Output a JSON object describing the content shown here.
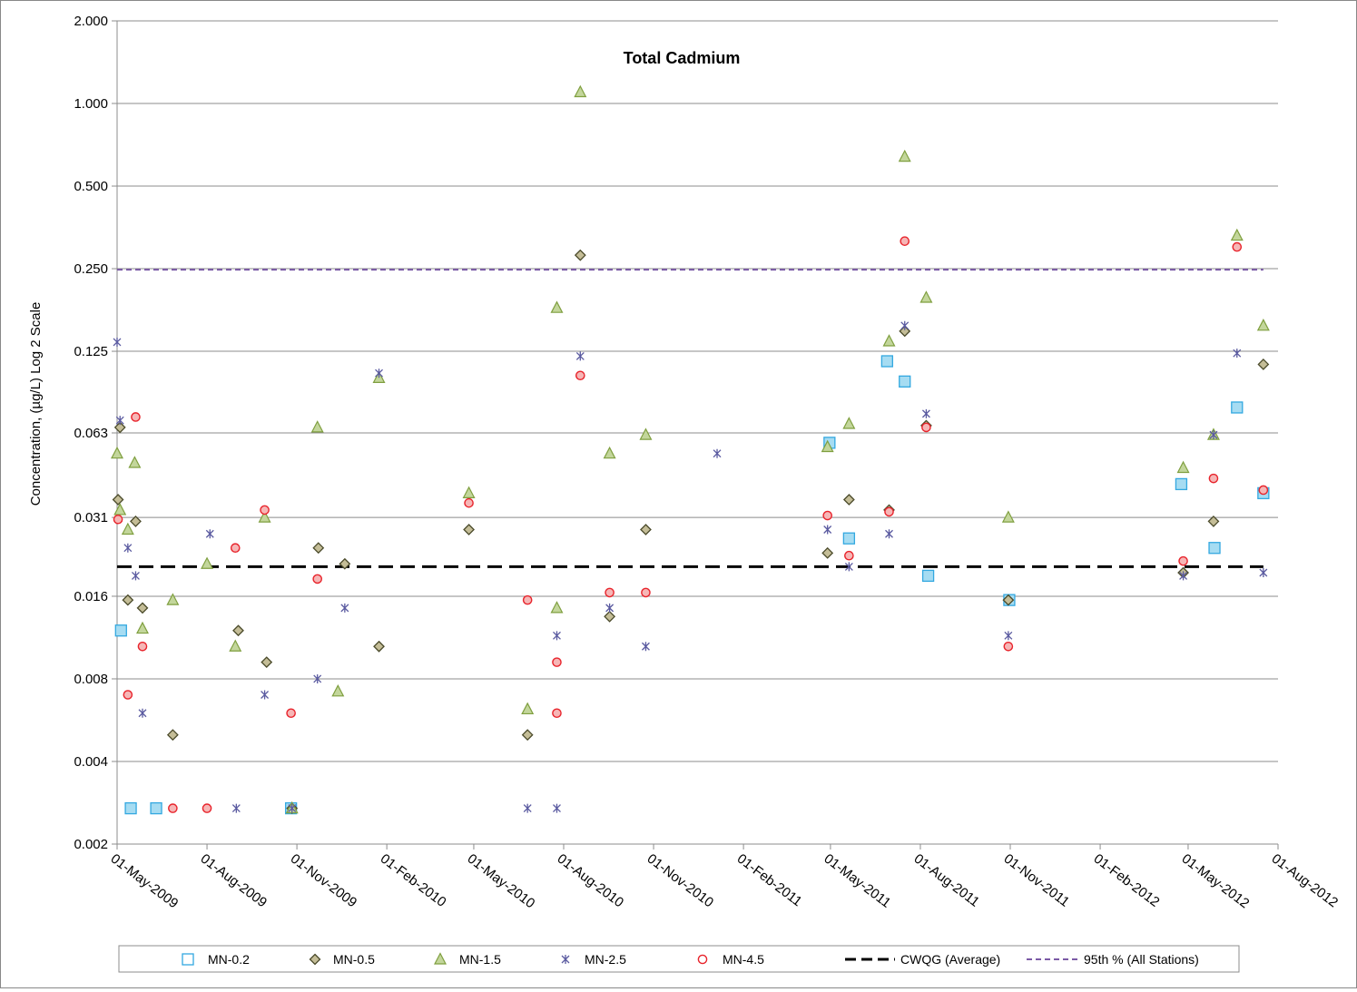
{
  "chart_data": {
    "type": "scatter",
    "title": "Total Cadmium",
    "ylabel": "Concentration, (µg/L) Log 2 Scale",
    "xlabel": "",
    "yscale": "log2",
    "ylim": [
      0.002,
      2.0
    ],
    "yticks": [
      {
        "value": 0.002,
        "label": "0.002"
      },
      {
        "value": 0.004,
        "label": "0.004"
      },
      {
        "value": 0.008,
        "label": "0.008"
      },
      {
        "value": 0.016,
        "label": "0.016"
      },
      {
        "value": 0.031,
        "label": "0.031"
      },
      {
        "value": 0.063,
        "label": "0.063"
      },
      {
        "value": 0.125,
        "label": "0.125"
      },
      {
        "value": 0.25,
        "label": "0.250"
      },
      {
        "value": 0.5,
        "label": "0.500"
      },
      {
        "value": 1.0,
        "label": "1.000"
      },
      {
        "value": 2.0,
        "label": "2.000"
      }
    ],
    "xlim": [
      "2009-05-01",
      "2012-08-01"
    ],
    "xticks": [
      {
        "date": "2009-05-01",
        "label": "01-May-2009"
      },
      {
        "date": "2009-08-01",
        "label": "01-Aug-2009"
      },
      {
        "date": "2009-11-01",
        "label": "01-Nov-2009"
      },
      {
        "date": "2010-02-01",
        "label": "01-Feb-2010"
      },
      {
        "date": "2010-05-01",
        "label": "01-May-2010"
      },
      {
        "date": "2010-08-01",
        "label": "01-Aug-2010"
      },
      {
        "date": "2010-11-01",
        "label": "01-Nov-2010"
      },
      {
        "date": "2011-02-01",
        "label": "01-Feb-2011"
      },
      {
        "date": "2011-05-01",
        "label": "01-May-2011"
      },
      {
        "date": "2011-08-01",
        "label": "01-Aug-2011"
      },
      {
        "date": "2011-11-01",
        "label": "01-Nov-2011"
      },
      {
        "date": "2012-02-01",
        "label": "01-Feb-2012"
      },
      {
        "date": "2012-05-01",
        "label": "01-May-2012"
      },
      {
        "date": "2012-08-01",
        "label": "01-Aug-2012"
      }
    ],
    "grid": "horizontal",
    "legend_position": "bottom",
    "series": [
      {
        "name": "MN-0.2",
        "marker": "square",
        "color": "#33a8e0",
        "fill": "#a6dcf2",
        "points": [
          {
            "x": "2009-05-05",
            "y": 0.012
          },
          {
            "x": "2009-05-15",
            "y": 0.0027
          },
          {
            "x": "2009-06-10",
            "y": 0.0027
          },
          {
            "x": "2009-10-26",
            "y": 0.0027
          },
          {
            "x": "2011-04-30",
            "y": 0.058
          },
          {
            "x": "2011-05-20",
            "y": 0.026
          },
          {
            "x": "2011-06-28",
            "y": 0.115
          },
          {
            "x": "2011-07-16",
            "y": 0.097
          },
          {
            "x": "2011-08-09",
            "y": 0.019
          },
          {
            "x": "2011-10-31",
            "y": 0.0155
          },
          {
            "x": "2012-04-24",
            "y": 0.041
          },
          {
            "x": "2012-05-28",
            "y": 0.024
          },
          {
            "x": "2012-06-20",
            "y": 0.078
          },
          {
            "x": "2012-07-17",
            "y": 0.038
          }
        ]
      },
      {
        "name": "MN-0.5",
        "marker": "diamond",
        "color": "#4a4a2a",
        "fill": "#c4bd97",
        "points": [
          {
            "x": "2009-05-02",
            "y": 0.036
          },
          {
            "x": "2009-05-04",
            "y": 0.066
          },
          {
            "x": "2009-05-12",
            "y": 0.0155
          },
          {
            "x": "2009-05-20",
            "y": 0.03
          },
          {
            "x": "2009-05-27",
            "y": 0.0145
          },
          {
            "x": "2009-06-27",
            "y": 0.005
          },
          {
            "x": "2009-09-02",
            "y": 0.012
          },
          {
            "x": "2009-10-01",
            "y": 0.0092
          },
          {
            "x": "2009-10-27",
            "y": 0.0027
          },
          {
            "x": "2009-11-23",
            "y": 0.024
          },
          {
            "x": "2009-12-20",
            "y": 0.021
          },
          {
            "x": "2010-01-24",
            "y": 0.0105
          },
          {
            "x": "2010-04-26",
            "y": 0.028
          },
          {
            "x": "2010-06-25",
            "y": 0.005
          },
          {
            "x": "2010-08-18",
            "y": 0.28
          },
          {
            "x": "2010-09-17",
            "y": 0.0135
          },
          {
            "x": "2010-10-24",
            "y": 0.028
          },
          {
            "x": "2011-04-28",
            "y": 0.023
          },
          {
            "x": "2011-05-20",
            "y": 0.036
          },
          {
            "x": "2011-06-30",
            "y": 0.033
          },
          {
            "x": "2011-07-16",
            "y": 0.148
          },
          {
            "x": "2011-08-07",
            "y": 0.067
          },
          {
            "x": "2011-10-30",
            "y": 0.0155
          },
          {
            "x": "2012-04-26",
            "y": 0.0195
          },
          {
            "x": "2012-05-27",
            "y": 0.03
          },
          {
            "x": "2012-07-17",
            "y": 0.112
          }
        ]
      },
      {
        "name": "MN-1.5",
        "marker": "triangle",
        "color": "#7f9f3f",
        "fill": "#c3d69b",
        "points": [
          {
            "x": "2009-05-01",
            "y": 0.053
          },
          {
            "x": "2009-05-04",
            "y": 0.033
          },
          {
            "x": "2009-05-12",
            "y": 0.028
          },
          {
            "x": "2009-05-19",
            "y": 0.049
          },
          {
            "x": "2009-05-27",
            "y": 0.0122
          },
          {
            "x": "2009-06-27",
            "y": 0.0155
          },
          {
            "x": "2009-08-01",
            "y": 0.021
          },
          {
            "x": "2009-08-30",
            "y": 0.0105
          },
          {
            "x": "2009-09-29",
            "y": 0.031
          },
          {
            "x": "2009-10-27",
            "y": 0.0027
          },
          {
            "x": "2009-11-22",
            "y": 0.066
          },
          {
            "x": "2009-12-13",
            "y": 0.0072
          },
          {
            "x": "2010-01-24",
            "y": 0.1
          },
          {
            "x": "2010-04-26",
            "y": 0.038
          },
          {
            "x": "2010-06-25",
            "y": 0.0062
          },
          {
            "x": "2010-07-25",
            "y": 0.0145
          },
          {
            "x": "2010-07-25",
            "y": 0.18
          },
          {
            "x": "2010-08-18",
            "y": 1.1
          },
          {
            "x": "2010-09-17",
            "y": 0.053
          },
          {
            "x": "2010-10-24",
            "y": 0.062
          },
          {
            "x": "2011-04-28",
            "y": 0.056
          },
          {
            "x": "2011-05-20",
            "y": 0.068
          },
          {
            "x": "2011-06-30",
            "y": 0.136
          },
          {
            "x": "2011-07-16",
            "y": 0.64
          },
          {
            "x": "2011-08-07",
            "y": 0.196
          },
          {
            "x": "2011-10-30",
            "y": 0.031
          },
          {
            "x": "2012-04-26",
            "y": 0.047
          },
          {
            "x": "2012-05-27",
            "y": 0.062
          },
          {
            "x": "2012-06-20",
            "y": 0.33
          },
          {
            "x": "2012-07-17",
            "y": 0.155
          }
        ]
      },
      {
        "name": "MN-2.5",
        "marker": "star",
        "color": "#5a5aa0",
        "fill": "#5a5aa0",
        "points": [
          {
            "x": "2009-05-01",
            "y": 0.135
          },
          {
            "x": "2009-05-04",
            "y": 0.07
          },
          {
            "x": "2009-05-12",
            "y": 0.024
          },
          {
            "x": "2009-05-20",
            "y": 0.019
          },
          {
            "x": "2009-05-27",
            "y": 0.006
          },
          {
            "x": "2009-08-04",
            "y": 0.027
          },
          {
            "x": "2009-08-31",
            "y": 0.0027
          },
          {
            "x": "2009-09-29",
            "y": 0.007
          },
          {
            "x": "2009-10-27",
            "y": 0.0027
          },
          {
            "x": "2009-11-22",
            "y": 0.008
          },
          {
            "x": "2009-12-20",
            "y": 0.0145
          },
          {
            "x": "2010-01-24",
            "y": 0.104
          },
          {
            "x": "2010-06-25",
            "y": 0.0027
          },
          {
            "x": "2010-07-25",
            "y": 0.0027
          },
          {
            "x": "2010-07-25",
            "y": 0.0115
          },
          {
            "x": "2010-08-18",
            "y": 0.12
          },
          {
            "x": "2010-09-17",
            "y": 0.0145
          },
          {
            "x": "2010-10-24",
            "y": 0.0105
          },
          {
            "x": "2011-01-05",
            "y": 0.053
          },
          {
            "x": "2011-04-28",
            "y": 0.028
          },
          {
            "x": "2011-05-20",
            "y": 0.0205
          },
          {
            "x": "2011-06-30",
            "y": 0.027
          },
          {
            "x": "2011-07-16",
            "y": 0.155
          },
          {
            "x": "2011-08-07",
            "y": 0.074
          },
          {
            "x": "2011-10-30",
            "y": 0.0115
          },
          {
            "x": "2012-04-26",
            "y": 0.019
          },
          {
            "x": "2012-05-27",
            "y": 0.062
          },
          {
            "x": "2012-06-20",
            "y": 0.123
          },
          {
            "x": "2012-07-17",
            "y": 0.0195
          }
        ]
      },
      {
        "name": "MN-4.5",
        "marker": "circle",
        "color": "#e8242c",
        "fill": "#f6b6b6",
        "points": [
          {
            "x": "2009-05-02",
            "y": 0.0305
          },
          {
            "x": "2009-05-12",
            "y": 0.007
          },
          {
            "x": "2009-05-20",
            "y": 0.072
          },
          {
            "x": "2009-05-27",
            "y": 0.0105
          },
          {
            "x": "2009-06-27",
            "y": 0.0027
          },
          {
            "x": "2009-08-01",
            "y": 0.0027
          },
          {
            "x": "2009-08-30",
            "y": 0.024
          },
          {
            "x": "2009-09-29",
            "y": 0.033
          },
          {
            "x": "2009-10-26",
            "y": 0.006
          },
          {
            "x": "2009-11-22",
            "y": 0.0185
          },
          {
            "x": "2010-04-26",
            "y": 0.035
          },
          {
            "x": "2010-06-25",
            "y": 0.0155
          },
          {
            "x": "2010-07-25",
            "y": 0.006
          },
          {
            "x": "2010-07-25",
            "y": 0.0092
          },
          {
            "x": "2010-08-18",
            "y": 0.102
          },
          {
            "x": "2010-09-17",
            "y": 0.0165
          },
          {
            "x": "2010-10-24",
            "y": 0.0165
          },
          {
            "x": "2011-04-28",
            "y": 0.0315
          },
          {
            "x": "2011-05-20",
            "y": 0.0225
          },
          {
            "x": "2011-06-30",
            "y": 0.0325
          },
          {
            "x": "2011-07-16",
            "y": 0.315
          },
          {
            "x": "2011-08-07",
            "y": 0.066
          },
          {
            "x": "2011-10-30",
            "y": 0.0105
          },
          {
            "x": "2012-04-26",
            "y": 0.0215
          },
          {
            "x": "2012-05-27",
            "y": 0.043
          },
          {
            "x": "2012-06-20",
            "y": 0.3
          },
          {
            "x": "2012-07-17",
            "y": 0.039
          }
        ]
      }
    ],
    "reference_lines": [
      {
        "name": "CWQG (Average)",
        "y": 0.0205,
        "x_from": "2009-05-01",
        "x_to": "2012-07-17",
        "color": "#000000",
        "style": "long-dash"
      },
      {
        "name": "95th % (All Stations)",
        "y": 0.248,
        "x_from": "2009-05-01",
        "x_to": "2012-07-17",
        "color": "#7b5aa6",
        "style": "dash"
      }
    ]
  }
}
